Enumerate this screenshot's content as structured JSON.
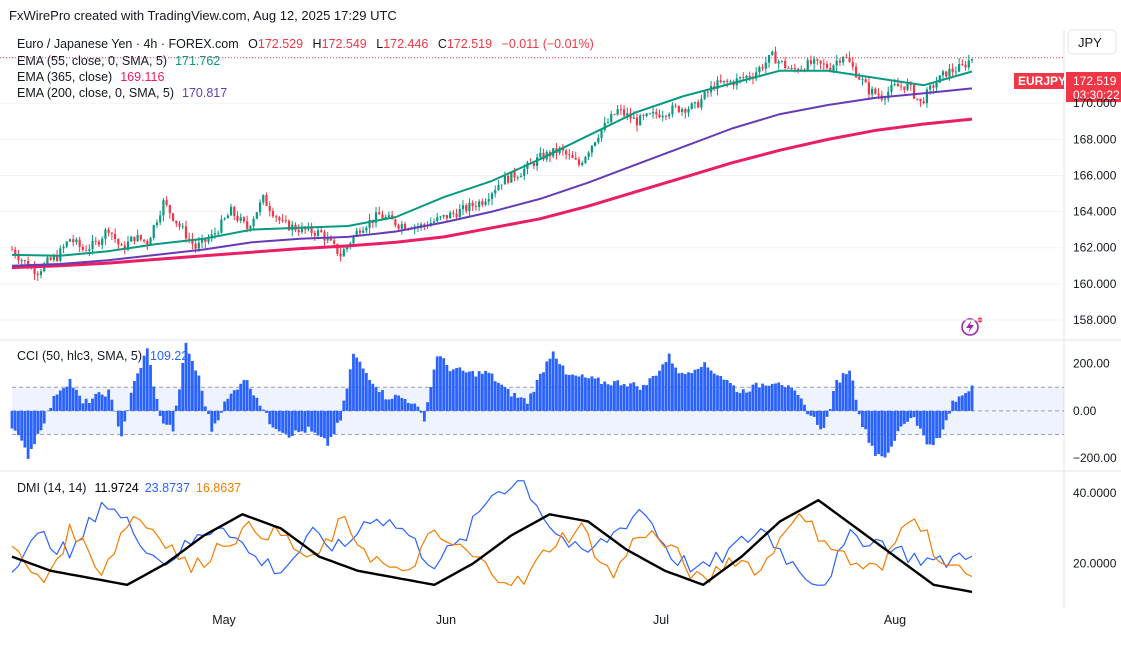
{
  "header": {
    "attribution": "FxWirePro created with TradingView.com, Aug 12, 2025 17:29 UTC"
  },
  "symbol": {
    "title": "Euro / Japanese Yen · 4h · FOREX.com",
    "ohlc": {
      "o_label": "O",
      "o": "172.529",
      "h_label": "H",
      "h": "172.549",
      "l_label": "L",
      "l": "172.446",
      "c_label": "C",
      "c": "172.519",
      "change": "−0.011 (−0.01%)"
    },
    "currency": "JPY",
    "ticker": "EURJPY",
    "last_price": "172.519",
    "countdown": "03:30:22"
  },
  "colors": {
    "up": "#089981",
    "down": "#f23645",
    "ema55": "#089981",
    "ema365": "#e91e63",
    "ema200": "#673ab7",
    "cci": "#2962ff",
    "dmi_plus": "#2962ff",
    "dmi_minus": "#f57c00",
    "adx": "#000000",
    "ticker_bg": "#f23645"
  },
  "chart_data": [
    {
      "type": "candlestick",
      "title": "Euro / Japanese Yen · 4h · FOREX.com",
      "ylim": [
        157.0,
        174.0
      ],
      "yticks": [
        "158.000",
        "160.000",
        "162.000",
        "164.000",
        "166.000",
        "168.000",
        "170.000"
      ],
      "xticks": [
        "May",
        "Jun",
        "Jul",
        "Aug"
      ],
      "price_anchors": [
        [
          0,
          161.9
        ],
        [
          5,
          161.0
        ],
        [
          8,
          160.7
        ],
        [
          11,
          161.2
        ],
        [
          14,
          161.5
        ],
        [
          18,
          162.5
        ],
        [
          22,
          161.9
        ],
        [
          26,
          162.2
        ],
        [
          30,
          163.1
        ],
        [
          34,
          161.9
        ],
        [
          38,
          162.6
        ],
        [
          42,
          162.3
        ],
        [
          47,
          164.5
        ],
        [
          52,
          163.2
        ],
        [
          57,
          162.0
        ],
        [
          62,
          162.6
        ],
        [
          68,
          164.0
        ],
        [
          73,
          163.1
        ],
        [
          78,
          164.7
        ],
        [
          84,
          163.3
        ],
        [
          90,
          163.0
        ],
        [
          96,
          162.8
        ],
        [
          102,
          161.6
        ],
        [
          108,
          163.1
        ],
        [
          114,
          163.8
        ],
        [
          120,
          163.3
        ],
        [
          127,
          163.2
        ],
        [
          133,
          163.6
        ],
        [
          140,
          164.1
        ],
        [
          146,
          164.6
        ],
        [
          152,
          165.7
        ],
        [
          158,
          166.2
        ],
        [
          164,
          167.0
        ],
        [
          170,
          167.4
        ],
        [
          176,
          166.6
        ],
        [
          182,
          168.3
        ],
        [
          188,
          169.6
        ],
        [
          194,
          169.0
        ],
        [
          200,
          169.4
        ],
        [
          206,
          169.7
        ],
        [
          212,
          169.8
        ],
        [
          218,
          171.0
        ],
        [
          224,
          171.2
        ],
        [
          230,
          171.6
        ],
        [
          236,
          172.6
        ],
        [
          242,
          171.8
        ],
        [
          248,
          172.2
        ],
        [
          254,
          172.0
        ],
        [
          258,
          172.7
        ],
        [
          262,
          171.7
        ],
        [
          266,
          170.7
        ],
        [
          270,
          170.4
        ],
        [
          274,
          170.9
        ],
        [
          278,
          171.0
        ],
        [
          282,
          170.0
        ],
        [
          286,
          171.0
        ],
        [
          290,
          171.7
        ],
        [
          295,
          172.0
        ],
        [
          298,
          172.52
        ]
      ],
      "series": [
        {
          "name": "EMA (55, close, 0, SMA, 5)",
          "last_value": "171.762",
          "values": [
            161.6,
            161.55,
            161.8,
            162.2,
            162.5,
            163.0,
            163.1,
            163.2,
            163.7,
            164.8,
            165.7,
            166.9,
            168.2,
            169.5,
            170.4,
            171.1,
            171.8,
            171.8,
            171.4,
            171.0,
            171.76
          ]
        },
        {
          "name": "EMA (365, close)",
          "last_value": "169.116",
          "values": [
            160.9,
            161.0,
            161.15,
            161.35,
            161.55,
            161.75,
            161.95,
            162.1,
            162.3,
            162.6,
            163.1,
            163.6,
            164.3,
            165.1,
            165.9,
            166.7,
            167.4,
            168.0,
            168.5,
            168.85,
            169.12
          ]
        },
        {
          "name": "EMA (200, close, 0, SMA, 5)",
          "last_value": "170.817",
          "values": [
            161.0,
            161.1,
            161.3,
            161.6,
            161.9,
            162.3,
            162.5,
            162.6,
            162.9,
            163.4,
            164.0,
            164.7,
            165.6,
            166.6,
            167.6,
            168.6,
            169.4,
            169.9,
            170.3,
            170.55,
            170.82
          ]
        }
      ]
    },
    {
      "type": "bar",
      "title": "CCI (50, hlc3, SMA, 5)",
      "value": "109.22",
      "ylim": [
        -250,
        300
      ],
      "yticks": [
        "200.00",
        "0.00",
        "−200.00"
      ],
      "band": [
        -100,
        100
      ],
      "anchors": [
        [
          0,
          -60
        ],
        [
          5,
          -190
        ],
        [
          10,
          -40
        ],
        [
          14,
          80
        ],
        [
          18,
          130
        ],
        [
          22,
          30
        ],
        [
          26,
          60
        ],
        [
          30,
          80
        ],
        [
          34,
          -100
        ],
        [
          38,
          120
        ],
        [
          42,
          260
        ],
        [
          46,
          -30
        ],
        [
          50,
          -80
        ],
        [
          54,
          280
        ],
        [
          58,
          140
        ],
        [
          62,
          -80
        ],
        [
          66,
          30
        ],
        [
          72,
          140
        ],
        [
          76,
          60
        ],
        [
          80,
          -50
        ],
        [
          86,
          -100
        ],
        [
          92,
          -80
        ],
        [
          98,
          -140
        ],
        [
          102,
          -40
        ],
        [
          106,
          240
        ],
        [
          110,
          160
        ],
        [
          116,
          60
        ],
        [
          120,
          60
        ],
        [
          124,
          40
        ],
        [
          128,
          -30
        ],
        [
          132,
          240
        ],
        [
          136,
          180
        ],
        [
          142,
          160
        ],
        [
          148,
          160
        ],
        [
          154,
          80
        ],
        [
          160,
          40
        ],
        [
          164,
          150
        ],
        [
          168,
          260
        ],
        [
          172,
          150
        ],
        [
          178,
          140
        ],
        [
          184,
          120
        ],
        [
          190,
          120
        ],
        [
          196,
          100
        ],
        [
          200,
          160
        ],
        [
          204,
          230
        ],
        [
          208,
          150
        ],
        [
          214,
          200
        ],
        [
          220,
          150
        ],
        [
          226,
          80
        ],
        [
          232,
          110
        ],
        [
          238,
          130
        ],
        [
          244,
          60
        ],
        [
          248,
          -20
        ],
        [
          252,
          -80
        ],
        [
          256,
          120
        ],
        [
          260,
          180
        ],
        [
          264,
          -60
        ],
        [
          268,
          -180
        ],
        [
          272,
          -190
        ],
        [
          276,
          -60
        ],
        [
          280,
          -20
        ],
        [
          284,
          -140
        ],
        [
          288,
          -120
        ],
        [
          292,
          30
        ],
        [
          296,
          80
        ],
        [
          298,
          109.22
        ]
      ]
    },
    {
      "type": "line",
      "title": "DMI (14, 14)",
      "ylim": [
        8,
        46
      ],
      "yticks": [
        "40.0000",
        "20.0000"
      ],
      "series": [
        {
          "name": "ADX",
          "last_value": "11.9724",
          "values": [
            22,
            18,
            16,
            14,
            20,
            28,
            34,
            30,
            22,
            18,
            16,
            14,
            20,
            28,
            34,
            32,
            24,
            18,
            14,
            22,
            32,
            38,
            30,
            22,
            14,
            12
          ]
        },
        {
          "name": "+DI",
          "last_value": "23.8737",
          "values": [
            20,
            28,
            22,
            38,
            30,
            20,
            26,
            32,
            22,
            18,
            28,
            24,
            34,
            30,
            20,
            26,
            40,
            44,
            30,
            22,
            28,
            36,
            22,
            18,
            24,
            30,
            20,
            14,
            28,
            26,
            22,
            20,
            24
          ]
        },
        {
          "name": "-DI",
          "last_value": "16.8637",
          "values": [
            24,
            14,
            30,
            18,
            34,
            28,
            18,
            26,
            30,
            28,
            20,
            32,
            22,
            16,
            28,
            24,
            18,
            14,
            26,
            30,
            16,
            30,
            24,
            14,
            22,
            18,
            34,
            28,
            20,
            18,
            36,
            20,
            16
          ]
        }
      ]
    }
  ]
}
